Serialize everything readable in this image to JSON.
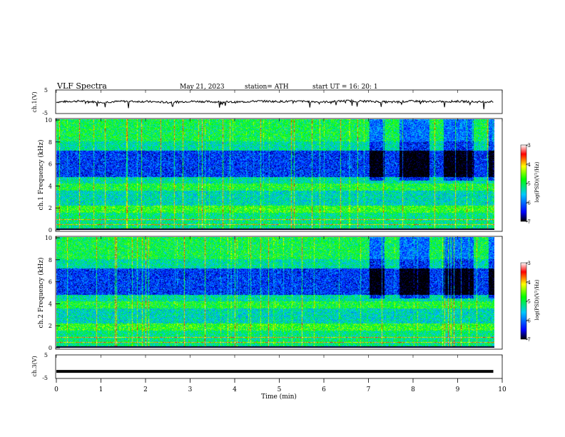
{
  "header": {
    "title": "VLF  Spectra",
    "date": "May 21, 2023",
    "station": "station= ATH",
    "start": "start  UT  =    16: 20: 1"
  },
  "colors": {
    "scale": [
      "#000000",
      "#0000ff",
      "#00c8ff",
      "#00ff00",
      "#ffff00",
      "#ff0000",
      "#ffffff"
    ]
  },
  "chart_data": [
    {
      "type": "line",
      "name": "ch1-waveform",
      "ylabel": "ch.1(V)",
      "ylim": [
        -5,
        5
      ],
      "yticks": [
        "5",
        "-5"
      ],
      "x": [
        0,
        0.5,
        1,
        1.5,
        2,
        2.5,
        3,
        3.5,
        4,
        4.5,
        5,
        5.5,
        6,
        6.5,
        7,
        7.5,
        8,
        8.5,
        9,
        9.5,
        9.8
      ],
      "values": [
        -0.1,
        0.3,
        -0.2,
        0.2,
        0.1,
        -0.3,
        0.2,
        0.0,
        -0.2,
        0.3,
        0.1,
        0.2,
        -0.1,
        0.4,
        0.2,
        -0.2,
        0.3,
        0.0,
        0.2,
        -0.1,
        0.1
      ]
    },
    {
      "type": "heatmap",
      "name": "ch1-spectrogram",
      "ylabel": "ch.1 Frequency (kHz)",
      "ylim": [
        0,
        10
      ],
      "yticks": [
        "0",
        "2",
        "4",
        "6",
        "8",
        "10"
      ],
      "colorbar_label": "log(PSD)(V²/Hz)",
      "colorbar_range": [
        -7,
        -3
      ],
      "colorbar_ticks": [
        "-3",
        "-4",
        "-5",
        "-6",
        "-7"
      ]
    },
    {
      "type": "heatmap",
      "name": "ch2-spectrogram",
      "ylabel": "ch.2 Frequency (kHz)",
      "ylim": [
        0,
        10
      ],
      "yticks": [
        "0",
        "2",
        "4",
        "6",
        "8",
        "10"
      ],
      "colorbar_label": "log(PSD)(V²/Hz)",
      "colorbar_range": [
        -7,
        -3
      ],
      "colorbar_ticks": [
        "-3",
        "-4",
        "-5",
        "-6",
        "-7"
      ]
    },
    {
      "type": "line",
      "name": "ch3-waveform",
      "ylabel": "ch.3(V)",
      "ylim": [
        -5,
        5
      ],
      "yticks": [
        "5",
        "-5"
      ],
      "x": [
        0,
        9.8
      ],
      "values": [
        -2,
        -2
      ]
    }
  ],
  "xaxis": {
    "label": "Time  (min)",
    "xlim": [
      0,
      10
    ],
    "ticks": [
      "0",
      "1",
      "2",
      "3",
      "4",
      "5",
      "6",
      "7",
      "8",
      "9",
      "10"
    ]
  }
}
